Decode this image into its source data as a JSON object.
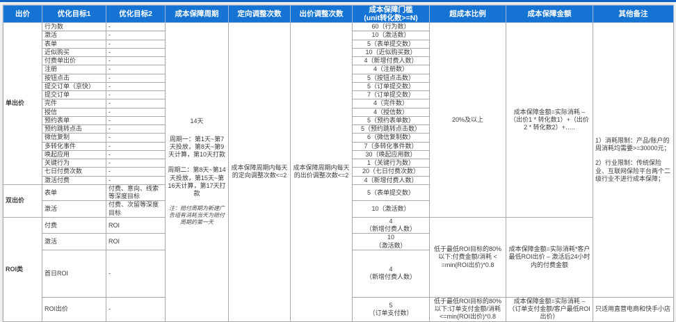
{
  "colors": {
    "header_bg": "#1473d3",
    "header_text": "#ffffff",
    "top_bar": "#0f62c6",
    "border": "#a9a9a9",
    "text": "#3b3b3b",
    "page_bg": "#eef0f2"
  },
  "table": {
    "headers": [
      "出价",
      "优化目标1",
      "优化目标2",
      "成本保障周期",
      "定向调整次数",
      "出价调整次数",
      "成本保障门槛\n(unit转化数>=N)",
      "超成本比例",
      "成本保障金额",
      "其他备注"
    ],
    "groups": [
      {
        "label": "单出价",
        "rows": [
          {
            "goal1": "行为数",
            "goal2": "-",
            "threshold": "60（行为数）"
          },
          {
            "goal1": "激活",
            "goal2": "-",
            "threshold": "10（激活数）"
          },
          {
            "goal1": "表单",
            "goal2": "-",
            "threshold": "5（表单提交数）"
          },
          {
            "goal1": "近似购买",
            "goal2": "-",
            "threshold": "10（近似购买数）"
          },
          {
            "goal1": "付费单出价",
            "goal2": "-",
            "threshold": "4（新增付费人数）"
          },
          {
            "goal1": "注册",
            "goal2": "-",
            "threshold": "4（注册数）"
          },
          {
            "goal1": "按钮点击",
            "goal2": "-",
            "threshold": "5（按钮点击数）"
          },
          {
            "goal1": "提交订单（京快）",
            "goal2": "-",
            "threshold": "5（订单提交数）"
          },
          {
            "goal1": "提交订单",
            "goal2": "-",
            "threshold": "7（订单提交数）"
          },
          {
            "goal1": "完件",
            "goal2": "-",
            "threshold": "4（完件数）"
          },
          {
            "goal1": "授信",
            "goal2": "-",
            "threshold": "4（授信数）"
          },
          {
            "goal1": "预约表单",
            "goal2": "-",
            "threshold": "5（预约表单数）"
          },
          {
            "goal1": "预约跳转点击",
            "goal2": "-",
            "threshold": "5（预约跳转点击数）"
          },
          {
            "goal1": "微信复制",
            "goal2": "-",
            "threshold": "6（微信复制数）"
          },
          {
            "goal1": "多转化事件",
            "goal2": "-",
            "threshold": "7（多转化事件数）"
          },
          {
            "goal1": "唤起应用",
            "goal2": "-",
            "threshold": "30（唤起应用数）"
          },
          {
            "goal1": "关键行为",
            "goal2": "-",
            "threshold": "1（关键行为数）"
          },
          {
            "goal1": "七日付费次数",
            "goal2": "-",
            "threshold": "20（七日付费次数）"
          },
          {
            "goal1": "激活付费",
            "goal2": "-",
            "threshold": "4（新增付费人数）"
          }
        ]
      },
      {
        "label": "双出价",
        "rows": [
          {
            "goal1": "表单",
            "goal2": "付费、意向、线索等深度目标",
            "threshold": "5（表单提交数）"
          },
          {
            "goal1": "激活",
            "goal2": "付费、次留等深度目标",
            "threshold": "10（激活数）"
          }
        ]
      },
      {
        "label": "ROI类",
        "rows": [
          {
            "goal1": "付费",
            "goal2": "ROI",
            "threshold": "4\n（新增付费人数）"
          },
          {
            "goal1": "激活",
            "goal2": "ROI",
            "threshold": "10\n（激活数）"
          },
          {
            "goal1": "首日ROI",
            "goal2": "-",
            "threshold": "4\n（新增付费人数）"
          },
          {
            "goal1": "ROI出价",
            "goal2": "-",
            "threshold": "5\n（订单支付数）"
          }
        ]
      }
    ],
    "period": {
      "paragraphs": [
        "14天",
        "周期一：第1天~第7天投放，第8天~第9天计算，第10天打款",
        "周期二：第8天~第14天投放，第15天~第16天计算，第17天打款"
      ],
      "note": "注：赔付周期为新建广告组有消耗当天为赔付周期的第一天"
    },
    "targeting_adjust": "成本保障周期内每天的定向调整次数<=2",
    "bid_adjust": "成本保障周期内每天的出价调整次数<=2",
    "over_cost_cells": [
      {
        "start": 0,
        "span": 21,
        "text": "20%及以上"
      },
      {
        "start": 21,
        "span": 3,
        "text": "低于最低ROI目标的80%以下:付费金额/消耗 < =min(ROI出价)*0.8"
      },
      {
        "start": 24,
        "span": 1,
        "text": "低于最低ROI目标的80%以下:订单支付金额/消耗 <=min(ROI出价)*0.8"
      }
    ],
    "amount_cells": [
      {
        "start": 0,
        "span": 21,
        "text": "成本保障金额=实际消耗 –（出价1 * 转化数1）+（出价2 * 转化数2）+….."
      },
      {
        "start": 21,
        "span": 3,
        "text": "成本保障金额=实际消耗*客户最低ROI出价 – 激活后24小时内的付费金额"
      },
      {
        "start": 24,
        "span": 1,
        "text": "成本保障金额=实际消耗 –（订单支付金额/客户最低ROI出价）"
      }
    ],
    "notes_cells": [
      {
        "start": 0,
        "span": 24,
        "align": "bottom",
        "paragraphs": [
          "1）消耗限制：产品/账户的周消耗均需要>=30000元；",
          "2）行业限制：传统保险业、互联网保险平台两个二级行业不进行成本保障；"
        ]
      },
      {
        "start": 24,
        "span": 1,
        "align": "middle",
        "paragraphs": [
          "只适用直营电商和快手小店"
        ]
      }
    ]
  }
}
